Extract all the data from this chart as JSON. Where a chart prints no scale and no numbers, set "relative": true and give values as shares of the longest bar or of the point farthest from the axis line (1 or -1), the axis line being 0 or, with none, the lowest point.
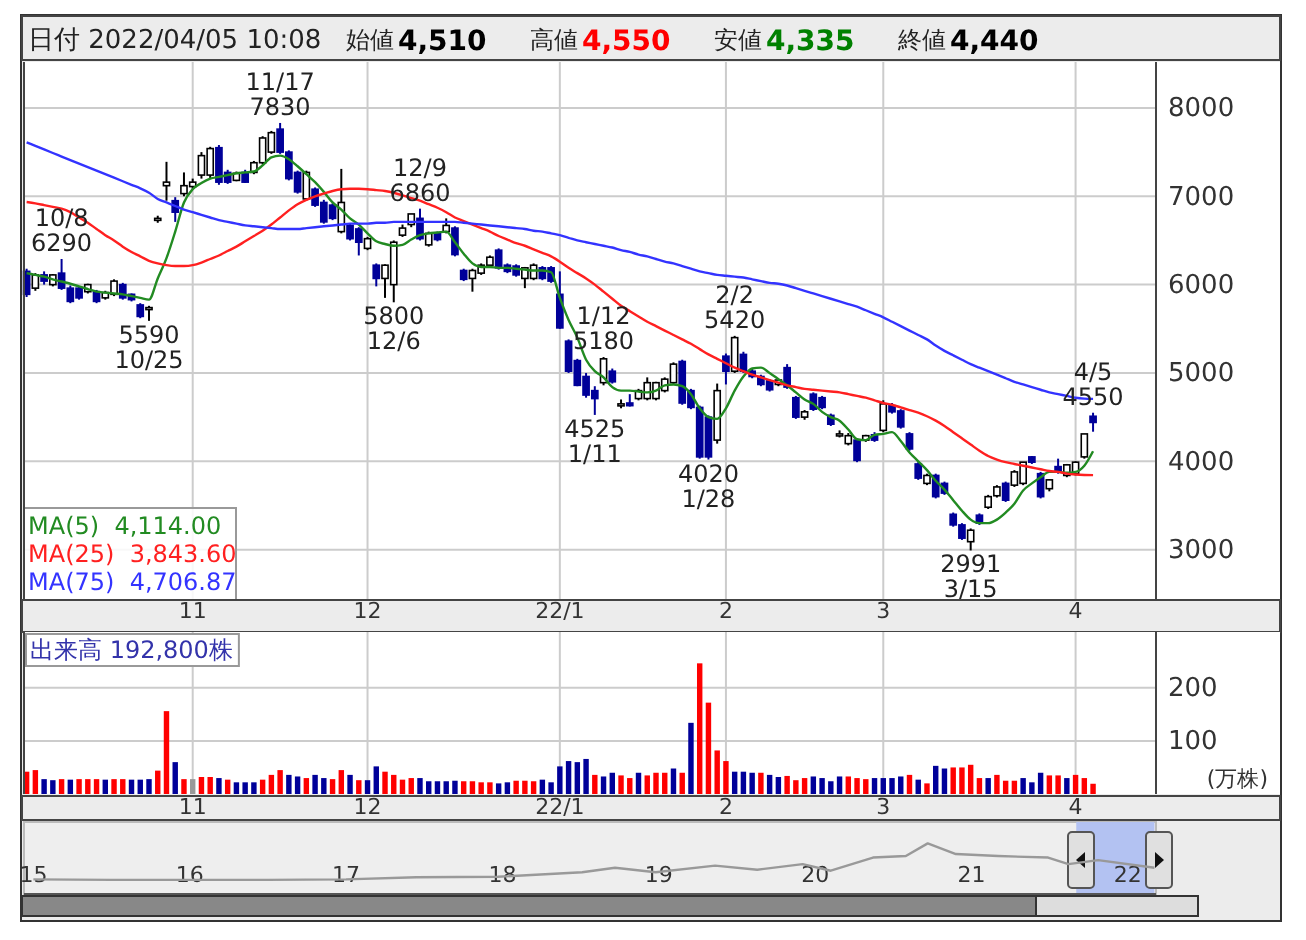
{
  "chart_data": [
    {
      "type": "other",
      "title": "日付 2022/04/05 10:08",
      "categories": [
        "始値",
        "高値",
        "安値",
        "終値"
      ],
      "value_labels": [
        "4,510",
        "4,550",
        "4,335",
        "4,440"
      ],
      "colors": [
        "#000000",
        "#ff0000",
        "#008000",
        "#000000"
      ]
    },
    {
      "type": "candlestick",
      "categories": [
        null,
        null,
        null,
        null,
        null,
        null,
        null,
        null,
        null,
        null,
        null,
        null,
        null,
        null,
        null,
        null,
        null,
        null,
        null,
        "11",
        null,
        null,
        null,
        null,
        null,
        null,
        null,
        null,
        null,
        null,
        null,
        null,
        null,
        null,
        null,
        null,
        null,
        null,
        null,
        "12",
        null,
        null,
        null,
        null,
        null,
        null,
        null,
        null,
        null,
        null,
        null,
        null,
        null,
        null,
        null,
        null,
        null,
        null,
        null,
        null,
        null,
        "22/1",
        null,
        null,
        null,
        null,
        null,
        null,
        null,
        null,
        null,
        null,
        null,
        null,
        null,
        null,
        null,
        null,
        null,
        null,
        "2",
        null,
        null,
        null,
        null,
        null,
        null,
        null,
        null,
        null,
        null,
        null,
        null,
        null,
        null,
        null,
        null,
        null,
        "3",
        null,
        null,
        null,
        null,
        null,
        null,
        null,
        null,
        null,
        null,
        null,
        null,
        null,
        null,
        null,
        null,
        null,
        null,
        null,
        null,
        null,
        "4",
        null,
        null
      ],
      "ohlc": [
        [
          6150,
          6180,
          5860,
          5890
        ],
        [
          5960,
          6130,
          5930,
          6110
        ],
        [
          6110,
          6150,
          6000,
          6040
        ],
        [
          6000,
          6120,
          5980,
          6110
        ],
        [
          6130,
          6290,
          5940,
          5960
        ],
        [
          5960,
          5990,
          5790,
          5810
        ],
        [
          5960,
          5980,
          5830,
          5850
        ],
        [
          5920,
          6010,
          5900,
          6000
        ],
        [
          5920,
          5940,
          5790,
          5810
        ],
        [
          5850,
          5930,
          5830,
          5910
        ],
        [
          5890,
          6060,
          5870,
          6040
        ],
        [
          6000,
          6020,
          5830,
          5850
        ],
        [
          5890,
          5900,
          5810,
          5830
        ],
        [
          5770,
          5790,
          5620,
          5640
        ],
        [
          5730,
          5760,
          5590,
          5740
        ],
        [
          6740,
          6780,
          6700,
          6750
        ],
        [
          7120,
          7390,
          6950,
          7160
        ],
        [
          6950,
          6990,
          6710,
          6820
        ],
        [
          7030,
          7270,
          7000,
          7120
        ],
        [
          7110,
          7200,
          7080,
          7160
        ],
        [
          7240,
          7500,
          7200,
          7460
        ],
        [
          7240,
          7560,
          7200,
          7540
        ],
        [
          7550,
          7580,
          7130,
          7160
        ],
        [
          7270,
          7300,
          7140,
          7160
        ],
        [
          7180,
          7280,
          7170,
          7260
        ],
        [
          7270,
          7300,
          7150,
          7160
        ],
        [
          7270,
          7400,
          7250,
          7380
        ],
        [
          7380,
          7680,
          7360,
          7660
        ],
        [
          7500,
          7740,
          7480,
          7720
        ],
        [
          7760,
          7830,
          7480,
          7500
        ],
        [
          7500,
          7520,
          7180,
          7200
        ],
        [
          7270,
          7290,
          7030,
          7050
        ],
        [
          6970,
          7290,
          6950,
          7270
        ],
        [
          7080,
          7100,
          6880,
          6900
        ],
        [
          6930,
          6960,
          6690,
          6710
        ],
        [
          6900,
          6920,
          6730,
          6750
        ],
        [
          6600,
          7310,
          6580,
          6930
        ],
        [
          6670,
          6690,
          6500,
          6520
        ],
        [
          6630,
          6650,
          6330,
          6480
        ],
        [
          6410,
          6540,
          6390,
          6520
        ],
        [
          6220,
          6240,
          5980,
          6070
        ],
        [
          6070,
          6230,
          5850,
          6220
        ],
        [
          6000,
          6500,
          5800,
          6480
        ],
        [
          6560,
          6680,
          6540,
          6640
        ],
        [
          6680,
          6800,
          6650,
          6800
        ],
        [
          6750,
          6860,
          6500,
          6520
        ],
        [
          6450,
          6600,
          6430,
          6580
        ],
        [
          6580,
          6600,
          6490,
          6510
        ],
        [
          6600,
          6750,
          6580,
          6670
        ],
        [
          6640,
          6660,
          6320,
          6340
        ],
        [
          6160,
          6180,
          6040,
          6060
        ],
        [
          6070,
          6180,
          5920,
          6160
        ],
        [
          6130,
          6240,
          6110,
          6220
        ],
        [
          6220,
          6330,
          6200,
          6310
        ],
        [
          6390,
          6410,
          6170,
          6190
        ],
        [
          6220,
          6240,
          6130,
          6150
        ],
        [
          6210,
          6230,
          6090,
          6110
        ],
        [
          6070,
          6200,
          5960,
          6190
        ],
        [
          6070,
          6240,
          6050,
          6220
        ],
        [
          6190,
          6210,
          6050,
          6070
        ],
        [
          6190,
          6210,
          6020,
          6040
        ],
        [
          5890,
          6150,
          5500,
          5510
        ],
        [
          5360,
          5380,
          5000,
          5020
        ],
        [
          5140,
          5160,
          4850,
          4860
        ],
        [
          4960,
          5000,
          4720,
          4750
        ],
        [
          4800,
          4850,
          4525,
          4710
        ],
        [
          4890,
          5180,
          4860,
          5160
        ],
        [
          5020,
          5050,
          4880,
          4900
        ],
        [
          4650,
          4700,
          4600,
          4650
        ],
        [
          4660,
          4760,
          4620,
          4630
        ],
        [
          4710,
          4820,
          4690,
          4800
        ],
        [
          4710,
          4950,
          4690,
          4890
        ],
        [
          4710,
          4900,
          4690,
          4890
        ],
        [
          4800,
          4950,
          4780,
          4930
        ],
        [
          4890,
          5120,
          4870,
          5100
        ],
        [
          5130,
          5150,
          4640,
          4660
        ],
        [
          4800,
          4820,
          4590,
          4610
        ],
        [
          4610,
          4630,
          4030,
          4050
        ],
        [
          4500,
          4520,
          4020,
          4050
        ],
        [
          4240,
          4880,
          4200,
          4800
        ],
        [
          5190,
          5220,
          4870,
          5020
        ],
        [
          5020,
          5420,
          5000,
          5400
        ],
        [
          5210,
          5240,
          5000,
          5020
        ],
        [
          5020,
          5050,
          4940,
          4960
        ],
        [
          4960,
          4980,
          4850,
          4870
        ],
        [
          4910,
          4930,
          4790,
          4810
        ],
        [
          4870,
          4930,
          4850,
          4920
        ],
        [
          5060,
          5100,
          4820,
          4840
        ],
        [
          4720,
          4740,
          4480,
          4500
        ],
        [
          4500,
          4580,
          4470,
          4560
        ],
        [
          4760,
          4780,
          4570,
          4590
        ],
        [
          4720,
          4740,
          4590,
          4610
        ],
        [
          4520,
          4540,
          4400,
          4420
        ],
        [
          4310,
          4350,
          4270,
          4310
        ],
        [
          4200,
          4320,
          4180,
          4290
        ],
        [
          4240,
          4260,
          3990,
          4010
        ],
        [
          4240,
          4300,
          4220,
          4290
        ],
        [
          4300,
          4330,
          4220,
          4240
        ],
        [
          4350,
          4690,
          4330,
          4650
        ],
        [
          4630,
          4660,
          4540,
          4560
        ],
        [
          4570,
          4590,
          4370,
          4390
        ],
        [
          4310,
          4330,
          4120,
          4140
        ],
        [
          3970,
          3990,
          3790,
          3810
        ],
        [
          3750,
          3860,
          3730,
          3840
        ],
        [
          3840,
          3860,
          3580,
          3600
        ],
        [
          3750,
          3770,
          3620,
          3640
        ],
        [
          3400,
          3420,
          3260,
          3280
        ],
        [
          3280,
          3300,
          3110,
          3130
        ],
        [
          3090,
          3240,
          2991,
          3220
        ],
        [
          3390,
          3410,
          3280,
          3300
        ],
        [
          3480,
          3620,
          3460,
          3600
        ],
        [
          3610,
          3730,
          3590,
          3710
        ],
        [
          3750,
          3770,
          3540,
          3560
        ],
        [
          3730,
          3900,
          3710,
          3880
        ],
        [
          3750,
          3990,
          3730,
          3990
        ],
        [
          4050,
          4060,
          3970,
          3990
        ],
        [
          3860,
          3880,
          3580,
          3600
        ],
        [
          3690,
          3800,
          3660,
          3790
        ],
        [
          3940,
          4030,
          3860,
          3880
        ],
        [
          3840,
          3970,
          3820,
          3960
        ],
        [
          3860,
          4000,
          3840,
          3990
        ],
        [
          4050,
          4310,
          4030,
          4310
        ],
        [
          4510,
          4550,
          4335,
          4440
        ]
      ],
      "series": [
        {
          "name": "MA(5)  4,114.00",
          "type": "line",
          "color": "#228b22",
          "values": [
            6130,
            6110,
            6090,
            6060,
            6035,
            6010,
            5980,
            5950,
            5920,
            5910,
            5900,
            5890,
            5870,
            5850,
            5830,
            6070,
            6300,
            6600,
            6930,
            7080,
            7150,
            7200,
            7220,
            7240,
            7260,
            7270,
            7280,
            7350,
            7440,
            7460,
            7420,
            7340,
            7250,
            7160,
            7050,
            6930,
            6850,
            6750,
            6680,
            6580,
            6490,
            6460,
            6440,
            6450,
            6510,
            6560,
            6580,
            6590,
            6600,
            6480,
            6350,
            6240,
            6200,
            6200,
            6190,
            6190,
            6180,
            6170,
            6160,
            6160,
            6140,
            5850,
            5600,
            5400,
            5150,
            5020,
            4950,
            4840,
            4800,
            4800,
            4790,
            4780,
            4800,
            4860,
            4870,
            4850,
            4760,
            4600,
            4500,
            4480,
            4600,
            4800,
            4960,
            5050,
            5060,
            5000,
            4930,
            4860,
            4780,
            4700,
            4650,
            4560,
            4500,
            4460,
            4360,
            4250,
            4240,
            4300,
            4310,
            4330,
            4230,
            4100,
            4000,
            3900,
            3780,
            3680,
            3560,
            3440,
            3340,
            3300,
            3300,
            3340,
            3420,
            3520,
            3670,
            3750,
            3820,
            3880,
            3880,
            3870,
            3880,
            3950,
            4114
          ]
        },
        {
          "name": "MA(25)  3,843.60",
          "type": "line",
          "color": "#ff2020",
          "values": [
            6935,
            6920,
            6900,
            6880,
            6860,
            6820,
            6760,
            6700,
            6630,
            6560,
            6500,
            6430,
            6370,
            6320,
            6270,
            6240,
            6220,
            6210,
            6210,
            6220,
            6250,
            6290,
            6330,
            6380,
            6430,
            6490,
            6550,
            6610,
            6680,
            6760,
            6840,
            6910,
            6960,
            7000,
            7030,
            7060,
            7080,
            7085,
            7085,
            7080,
            7070,
            7060,
            7040,
            7010,
            6980,
            6950,
            6910,
            6870,
            6820,
            6760,
            6720,
            6680,
            6640,
            6600,
            6550,
            6510,
            6470,
            6440,
            6400,
            6360,
            6320,
            6260,
            6190,
            6130,
            6070,
            6000,
            5920,
            5840,
            5760,
            5700,
            5640,
            5580,
            5530,
            5480,
            5430,
            5380,
            5330,
            5270,
            5210,
            5160,
            5110,
            5060,
            5020,
            4980,
            4950,
            4920,
            4890,
            4860,
            4840,
            4820,
            4810,
            4800,
            4790,
            4780,
            4760,
            4740,
            4720,
            4690,
            4660,
            4640,
            4610,
            4580,
            4550,
            4510,
            4460,
            4400,
            4330,
            4260,
            4190,
            4120,
            4060,
            4020,
            3990,
            3970,
            3950,
            3930,
            3910,
            3890,
            3880,
            3860,
            3850,
            3845,
            3843.6
          ]
        },
        {
          "name": "MA(75)  4,706.87",
          "type": "line",
          "color": "#3333ff",
          "values": [
            7610,
            7570,
            7530,
            7490,
            7450,
            7410,
            7370,
            7330,
            7290,
            7250,
            7210,
            7170,
            7130,
            7090,
            7040,
            6970,
            6930,
            6890,
            6850,
            6820,
            6790,
            6760,
            6730,
            6710,
            6690,
            6670,
            6660,
            6650,
            6640,
            6630,
            6630,
            6630,
            6640,
            6650,
            6660,
            6670,
            6680,
            6690,
            6690,
            6690,
            6700,
            6700,
            6710,
            6710,
            6710,
            6710,
            6710,
            6710,
            6710,
            6710,
            6700,
            6690,
            6680,
            6670,
            6660,
            6650,
            6640,
            6630,
            6610,
            6600,
            6580,
            6560,
            6530,
            6500,
            6480,
            6460,
            6440,
            6420,
            6390,
            6370,
            6340,
            6320,
            6290,
            6260,
            6240,
            6210,
            6180,
            6150,
            6130,
            6110,
            6100,
            6090,
            6080,
            6060,
            6040,
            6020,
            6010,
            5990,
            5960,
            5930,
            5900,
            5870,
            5840,
            5810,
            5780,
            5750,
            5710,
            5670,
            5630,
            5580,
            5530,
            5480,
            5430,
            5380,
            5310,
            5250,
            5200,
            5150,
            5100,
            5060,
            5020,
            4980,
            4940,
            4900,
            4870,
            4840,
            4810,
            4780,
            4760,
            4740,
            4720,
            4710,
            4706.87
          ]
        }
      ],
      "ylim": [
        2430,
        8520
      ],
      "yticks": [
        3000,
        4000,
        5000,
        6000,
        7000,
        8000
      ],
      "grid": true,
      "legend": "bottom left",
      "annotations": [
        {
          "text": "10/8\n6290",
          "y": 6290
        },
        {
          "text": "5590\n10/25",
          "y": 5590
        },
        {
          "text": "11/17\n7830",
          "y": 7830
        },
        {
          "text": "5800\n12/6",
          "y": 5800
        },
        {
          "text": "12/9\n6860",
          "y": 6860
        },
        {
          "text": "1/12\n5180",
          "y": 5180
        },
        {
          "text": "4525\n1/11",
          "y": 4525
        },
        {
          "text": "2/2\n5420",
          "y": 5420
        },
        {
          "text": "4020\n1/28",
          "y": 4020
        },
        {
          "text": "2991\n3/15",
          "y": 2991
        },
        {
          "text": "4/5\n4550",
          "y": 4550
        }
      ]
    },
    {
      "type": "bar",
      "title": "出来高  192,800株",
      "ylabel": "(万株)",
      "categories": [
        null,
        null,
        null,
        null,
        null,
        null,
        null,
        null,
        null,
        null,
        null,
        null,
        null,
        null,
        null,
        null,
        null,
        null,
        null,
        "11",
        null,
        null,
        null,
        null,
        null,
        null,
        null,
        null,
        null,
        null,
        null,
        null,
        null,
        null,
        null,
        null,
        null,
        null,
        null,
        "12",
        null,
        null,
        null,
        null,
        null,
        null,
        null,
        null,
        null,
        null,
        null,
        null,
        null,
        null,
        null,
        null,
        null,
        null,
        null,
        null,
        null,
        "22/1",
        null,
        null,
        null,
        null,
        null,
        null,
        null,
        null,
        null,
        null,
        null,
        null,
        null,
        null,
        null,
        null,
        null,
        null,
        "2",
        null,
        null,
        null,
        null,
        null,
        null,
        null,
        null,
        null,
        null,
        null,
        null,
        null,
        null,
        null,
        null,
        null,
        "3",
        null,
        null,
        null,
        null,
        null,
        null,
        null,
        null,
        null,
        null,
        null,
        null,
        null,
        null,
        null,
        null,
        null,
        null,
        null,
        null,
        null,
        "4",
        null,
        null
      ],
      "values": [
        42,
        45,
        28,
        26,
        28,
        27,
        28,
        28,
        28,
        27,
        28,
        28,
        27,
        27,
        28,
        44,
        156,
        60,
        28,
        28,
        32,
        32,
        30,
        27,
        22,
        22,
        22,
        27,
        36,
        45,
        36,
        33,
        30,
        36,
        30,
        28,
        45,
        36,
        26,
        26,
        52,
        42,
        36,
        27,
        30,
        30,
        24,
        24,
        24,
        25,
        24,
        24,
        22,
        22,
        20,
        22,
        25,
        25,
        24,
        27,
        22,
        52,
        62,
        60,
        66,
        36,
        33,
        40,
        35,
        30,
        40,
        35,
        40,
        40,
        48,
        40,
        134,
        246,
        172,
        82,
        62,
        42,
        42,
        40,
        40,
        36,
        32,
        34,
        26,
        30,
        33,
        30,
        24,
        33,
        33,
        30,
        28,
        30,
        30,
        30,
        33,
        36,
        27,
        20,
        53,
        48,
        50,
        50,
        55,
        30,
        30,
        36,
        25,
        25,
        30,
        22,
        40,
        35,
        35,
        30,
        36,
        30,
        19.28
      ],
      "colors": [
        "#ff0000",
        "#ff0000",
        "#000099",
        "#000099",
        "#ff0000",
        "#000099",
        "#ff0000",
        "#ff0000",
        "#ff0000",
        "#000099",
        "#ff0000",
        "#ff0000",
        "#000099",
        "#000099",
        "#000099",
        "#ff0000",
        "#ff0000",
        "#000099",
        "#ff0000",
        "#999999",
        "#ff0000",
        "#ff0000",
        "#000099",
        "#ff0000",
        "#000099",
        "#000099",
        "#000099",
        "#ff0000",
        "#ff0000",
        "#ff0000",
        "#000099",
        "#000099",
        "#ff0000",
        "#000099",
        "#000099",
        "#ff0000",
        "#ff0000",
        "#000099",
        "#ff0000",
        "#000099",
        "#000099",
        "#ff0000",
        "#ff0000",
        "#ff0000",
        "#ff0000",
        "#000099",
        "#000099",
        "#000099",
        "#000099",
        "#000099",
        "#ff0000",
        "#ff0000",
        "#ff0000",
        "#ff0000",
        "#000099",
        "#000099",
        "#ff0000",
        "#ff0000",
        "#ff0000",
        "#000099",
        "#000099",
        "#000099",
        "#000099",
        "#000099",
        "#000099",
        "#ff0000",
        "#000099",
        "#000099",
        "#ff0000",
        "#ff0000",
        "#000099",
        "#ff0000",
        "#ff0000",
        "#ff0000",
        "#000099",
        "#ff0000",
        "#000099",
        "#ff0000",
        "#ff0000",
        "#ff0000",
        "#ff0000",
        "#000099",
        "#000099",
        "#000099",
        "#ff0000",
        "#000099",
        "#000099",
        "#ff0000",
        "#ff0000",
        "#ff0000",
        "#000099",
        "#000099",
        "#000099",
        "#000099",
        "#ff0000",
        "#ff0000",
        "#ff0000",
        "#000099",
        "#000099",
        "#000099",
        "#000099",
        "#ff0000",
        "#000099",
        "#ff0000",
        "#000099",
        "#000099",
        "#ff0000",
        "#ff0000",
        "#ff0000",
        "#ff0000",
        "#000099",
        "#ff0000",
        "#ff0000",
        "#ff0000",
        "#000099",
        "#000099",
        "#000099",
        "#ff0000",
        "#ff0000",
        "#000099",
        "#ff0000",
        "#ff0000",
        "#ff0000"
      ],
      "ylim": [
        0,
        305
      ],
      "yticks": [
        100,
        200
      ],
      "grid": true
    },
    {
      "type": "line",
      "relative": true,
      "color": "#999999",
      "x": [
        15.0,
        15.5,
        16.0,
        16.5,
        17.0,
        17.45,
        17.97,
        18.51,
        18.72,
        18.98,
        19.36,
        19.63,
        19.92,
        20.1,
        20.37,
        20.58,
        20.72,
        20.9,
        21.17,
        21.49,
        21.62,
        21.81,
        22.17
      ],
      "values": [
        0.29,
        0.28,
        0.28,
        0.28,
        0.29,
        0.33,
        0.34,
        0.43,
        0.52,
        0.43,
        0.56,
        0.48,
        0.59,
        0.46,
        0.72,
        0.75,
        1,
        0.79,
        0.75,
        0.72,
        0.59,
        0.67,
        0.52
      ],
      "xlim": [
        14.94,
        22.18
      ],
      "xticks": [
        15,
        16,
        17,
        18,
        19,
        20,
        21,
        22
      ],
      "tick_labels": "x",
      "bands": [
        {
          "axis": "x",
          "from": 21.67,
          "to": 22.17,
          "color": "#b3c2f2"
        }
      ]
    }
  ]
}
